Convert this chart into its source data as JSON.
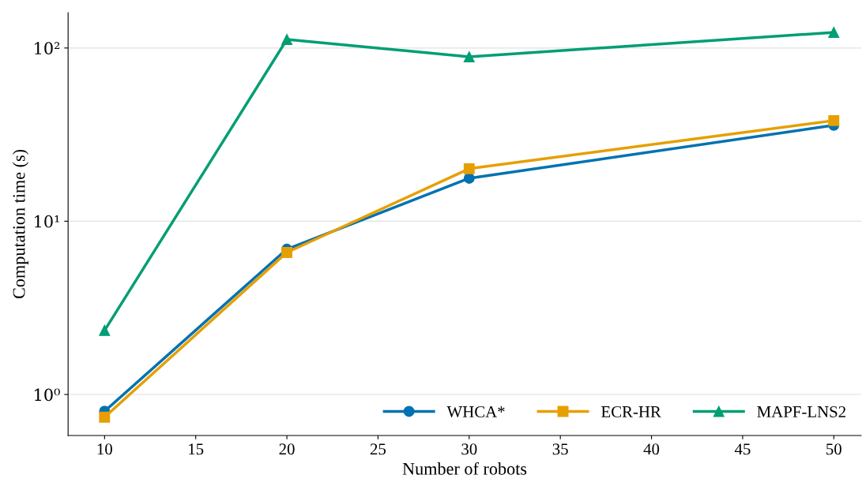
{
  "chart_data": {
    "type": "line",
    "xlabel": "Number of robots",
    "ylabel": "Computation time (s)",
    "x": [
      10,
      20,
      30,
      50
    ],
    "series": [
      {
        "name": "WHCA*",
        "color": "#0072b2",
        "marker": "circle",
        "values": [
          0.8,
          6.9,
          17.7,
          35.8
        ]
      },
      {
        "name": "ECR-HR",
        "color": "#e69f00",
        "marker": "square",
        "values": [
          0.74,
          6.6,
          20.1,
          38.1
        ]
      },
      {
        "name": "MAPF-LNS2",
        "color": "#009e73",
        "marker": "triangle",
        "values": [
          2.34,
          112,
          89,
          123
        ]
      }
    ],
    "log": "y",
    "xlim": [
      8,
      51.5
    ],
    "ylim": [
      0.58,
      160
    ],
    "xticks": [
      10,
      15,
      20,
      25,
      30,
      35,
      40,
      45,
      50
    ],
    "yticks": [
      {
        "value": 1,
        "label": "10⁰"
      },
      {
        "value": 10,
        "label": "10¹"
      },
      {
        "value": 100,
        "label": "10²"
      }
    ],
    "grid": "y",
    "legend": "bottom right",
    "line_style": "solid"
  }
}
